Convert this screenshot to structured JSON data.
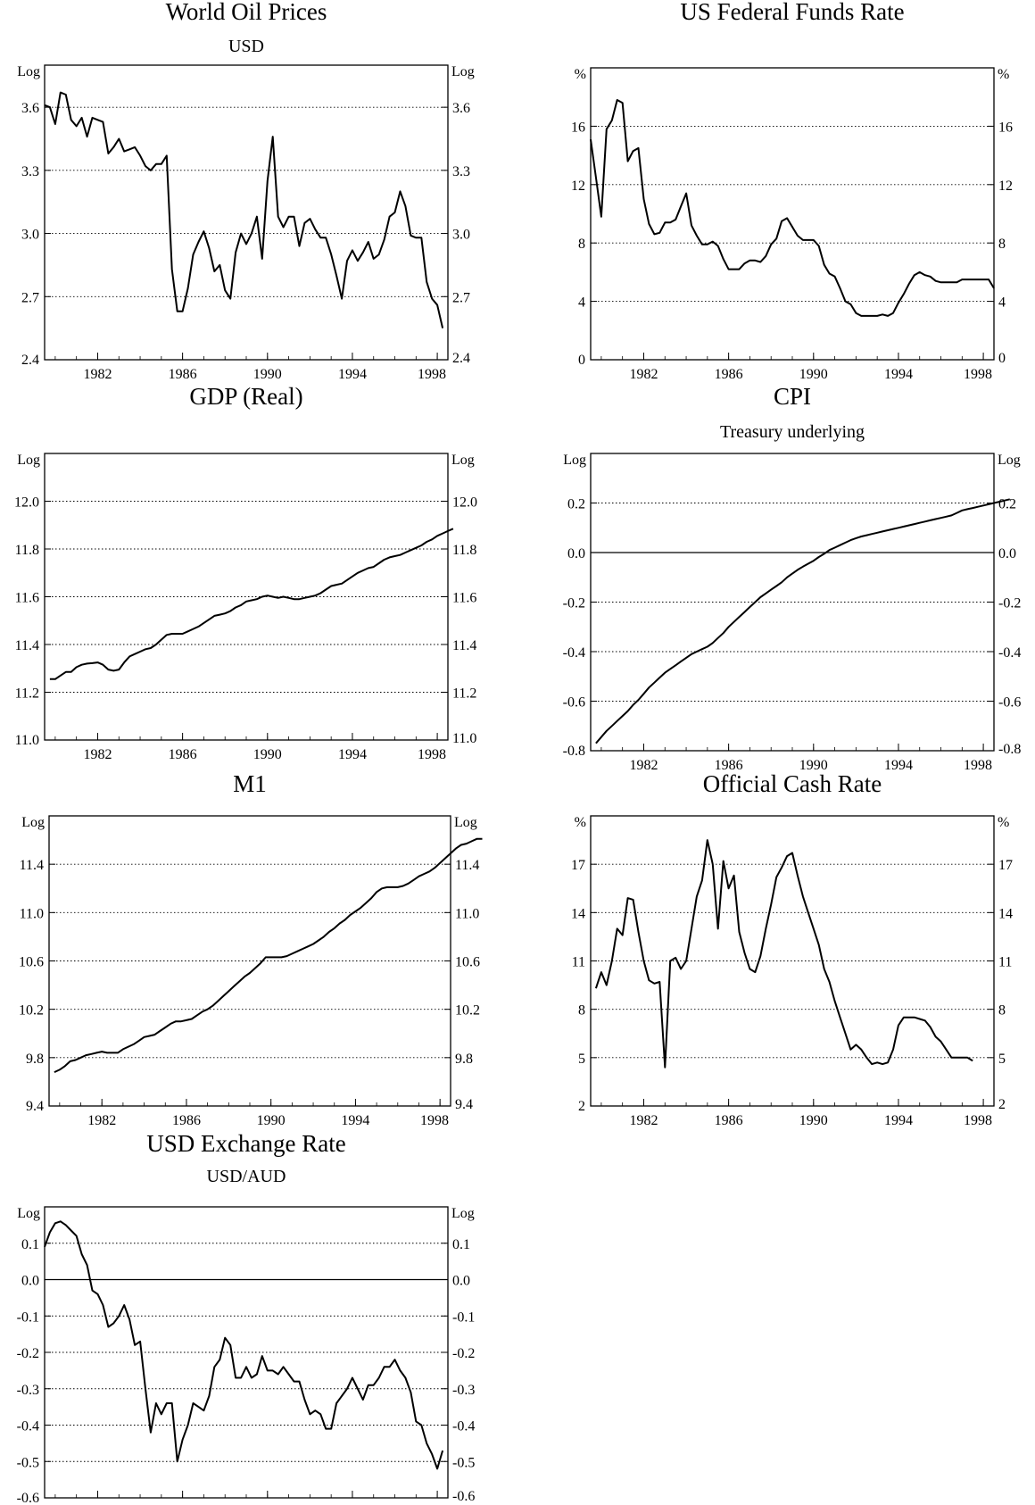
{
  "chart_data": [
    {
      "type": "line",
      "title": "World Oil Prices",
      "subtitle": "USD",
      "unit_left": "Log",
      "unit_right": "Log",
      "ylim": [
        2.4,
        3.8
      ],
      "yticks": [
        "2.4",
        "2.7",
        "3.0",
        "3.3",
        "3.6"
      ],
      "xlim": [
        1979.5,
        1998.5
      ],
      "xticks": [
        "1982",
        "1986",
        "1990",
        "1994",
        "1998"
      ],
      "zero_line": false,
      "grid": "horizontal-dotted",
      "series": [
        {
          "x_start": 1979.5,
          "x_step": 0.25,
          "values": [
            3.61,
            3.6,
            3.52,
            3.67,
            3.66,
            3.54,
            3.51,
            3.55,
            3.46,
            3.55,
            3.54,
            3.53,
            3.38,
            3.41,
            3.45,
            3.39,
            3.4,
            3.41,
            3.37,
            3.32,
            3.3,
            3.33,
            3.33,
            3.37,
            2.83,
            2.63,
            2.63,
            2.74,
            2.9,
            2.96,
            3.01,
            2.93,
            2.82,
            2.85,
            2.73,
            2.69,
            2.91,
            3.0,
            2.95,
            3.0,
            3.08,
            2.88,
            3.25,
            3.46,
            3.08,
            3.03,
            3.08,
            3.08,
            2.94,
            3.05,
            3.07,
            3.02,
            2.98,
            2.98,
            2.9,
            2.8,
            2.69,
            2.87,
            2.92,
            2.87,
            2.91,
            2.96,
            2.88,
            2.9,
            2.97,
            3.08,
            3.1,
            3.2,
            3.13,
            2.99,
            2.98,
            2.98,
            2.77,
            2.69,
            2.66,
            2.55
          ]
        }
      ]
    },
    {
      "type": "line",
      "title": "US Federal Funds Rate",
      "subtitle": "",
      "unit_left": "%",
      "unit_right": "%",
      "ylim": [
        0,
        20
      ],
      "yticks": [
        "0",
        "4",
        "8",
        "12",
        "16"
      ],
      "xlim": [
        1979.5,
        1998.5
      ],
      "xticks": [
        "1982",
        "1986",
        "1990",
        "1994",
        "1998"
      ],
      "zero_line": false,
      "grid": "horizontal-dotted",
      "series": [
        {
          "x_start": 1979.5,
          "x_step": 0.25,
          "values": [
            15.1,
            12.5,
            9.8,
            15.8,
            16.4,
            17.8,
            17.6,
            13.6,
            14.3,
            14.5,
            11.0,
            9.3,
            8.6,
            8.7,
            9.4,
            9.4,
            9.6,
            10.5,
            11.4,
            9.2,
            8.5,
            7.9,
            7.9,
            8.1,
            7.8,
            6.9,
            6.2,
            6.2,
            6.2,
            6.6,
            6.8,
            6.8,
            6.7,
            7.1,
            7.9,
            8.3,
            9.5,
            9.7,
            9.1,
            8.5,
            8.2,
            8.2,
            8.2,
            7.8,
            6.5,
            5.9,
            5.7,
            4.9,
            4.0,
            3.8,
            3.2,
            3.0,
            3.0,
            3.0,
            3.0,
            3.1,
            3.0,
            3.2,
            3.9,
            4.5,
            5.2,
            5.8,
            6.0,
            5.8,
            5.7,
            5.4,
            5.3,
            5.3,
            5.3,
            5.3,
            5.5,
            5.5,
            5.5,
            5.5,
            5.5,
            5.5,
            4.9
          ]
        }
      ]
    },
    {
      "type": "line",
      "title": "GDP (Real)",
      "subtitle": "",
      "unit_left": "Log",
      "unit_right": "Log",
      "ylim": [
        11.0,
        12.2
      ],
      "yticks": [
        "11.0",
        "11.2",
        "11.4",
        "11.6",
        "11.8",
        "12.0"
      ],
      "xlim": [
        1979.5,
        1998.5
      ],
      "xticks": [
        "1982",
        "1986",
        "1990",
        "1994",
        "1998"
      ],
      "zero_line": false,
      "grid": "horizontal-dotted",
      "series": [
        {
          "x_start": 1979.75,
          "x_step": 0.25,
          "values": [
            11.255,
            11.255,
            11.27,
            11.285,
            11.285,
            11.305,
            11.315,
            11.32,
            11.322,
            11.325,
            11.315,
            11.295,
            11.29,
            11.295,
            11.325,
            11.35,
            11.36,
            11.37,
            11.38,
            11.385,
            11.4,
            11.42,
            11.44,
            11.445,
            11.445,
            11.445,
            11.455,
            11.465,
            11.475,
            11.49,
            11.505,
            11.52,
            11.525,
            11.53,
            11.54,
            11.555,
            11.565,
            11.58,
            11.585,
            11.59,
            11.6,
            11.605,
            11.6,
            11.595,
            11.6,
            11.595,
            11.59,
            11.59,
            11.595,
            11.6,
            11.605,
            11.615,
            11.63,
            11.645,
            11.65,
            11.655,
            11.67,
            11.685,
            11.7,
            11.71,
            11.72,
            11.725,
            11.74,
            11.755,
            11.765,
            11.77,
            11.775,
            11.785,
            11.795,
            11.805,
            11.815,
            11.83,
            11.84,
            11.855,
            11.865,
            11.875,
            11.885
          ]
        }
      ]
    },
    {
      "type": "line",
      "title": "CPI",
      "subtitle": "Treasury underlying",
      "unit_left": "Log",
      "unit_right": "Log",
      "ylim": [
        -0.8,
        0.4
      ],
      "yticks": [
        "-0.8",
        "-0.6",
        "-0.4",
        "-0.2",
        "0.0",
        "0.2"
      ],
      "xlim": [
        1979.5,
        1998.5
      ],
      "xticks": [
        "1982",
        "1986",
        "1990",
        "1994",
        "1998"
      ],
      "zero_line": true,
      "grid": "horizontal-dotted",
      "series": [
        {
          "x_start": 1979.75,
          "x_step": 0.25,
          "values": [
            -0.77,
            -0.745,
            -0.72,
            -0.7,
            -0.68,
            -0.66,
            -0.64,
            -0.615,
            -0.595,
            -0.57,
            -0.545,
            -0.525,
            -0.505,
            -0.485,
            -0.47,
            -0.455,
            -0.44,
            -0.425,
            -0.41,
            -0.4,
            -0.39,
            -0.38,
            -0.365,
            -0.345,
            -0.325,
            -0.3,
            -0.28,
            -0.26,
            -0.24,
            -0.22,
            -0.2,
            -0.18,
            -0.165,
            -0.15,
            -0.135,
            -0.12,
            -0.1,
            -0.085,
            -0.07,
            -0.057,
            -0.045,
            -0.033,
            -0.018,
            -0.005,
            0.01,
            0.02,
            0.03,
            0.04,
            0.05,
            0.058,
            0.065,
            0.07,
            0.075,
            0.08,
            0.085,
            0.09,
            0.095,
            0.1,
            0.105,
            0.11,
            0.115,
            0.12,
            0.125,
            0.13,
            0.135,
            0.14,
            0.145,
            0.15,
            0.16,
            0.17,
            0.175,
            0.18,
            0.185,
            0.19,
            0.195,
            0.2,
            0.205,
            0.21,
            0.215
          ]
        }
      ]
    },
    {
      "type": "line",
      "title": "M1",
      "subtitle": "",
      "unit_left": "Log",
      "unit_right": "Log",
      "ylim": [
        9.4,
        11.8
      ],
      "yticks": [
        "9.4",
        "9.8",
        "10.2",
        "10.6",
        "11.0",
        "11.4"
      ],
      "xlim": [
        1979.5,
        1998.5
      ],
      "xticks": [
        "1982",
        "1986",
        "1990",
        "1994",
        "1998"
      ],
      "zero_line": false,
      "grid": "horizontal-dotted",
      "series": [
        {
          "x_start": 1979.75,
          "x_step": 0.25,
          "values": [
            9.68,
            9.7,
            9.73,
            9.77,
            9.78,
            9.8,
            9.82,
            9.83,
            9.84,
            9.85,
            9.84,
            9.84,
            9.84,
            9.87,
            9.89,
            9.91,
            9.94,
            9.97,
            9.98,
            9.99,
            10.02,
            10.05,
            10.08,
            10.1,
            10.1,
            10.11,
            10.12,
            10.15,
            10.18,
            10.2,
            10.23,
            10.27,
            10.31,
            10.35,
            10.39,
            10.43,
            10.47,
            10.5,
            10.54,
            10.58,
            10.63,
            10.63,
            10.63,
            10.63,
            10.64,
            10.66,
            10.68,
            10.7,
            10.72,
            10.74,
            10.77,
            10.8,
            10.84,
            10.87,
            10.91,
            10.94,
            10.98,
            11.01,
            11.04,
            11.08,
            11.12,
            11.17,
            11.2,
            11.21,
            11.21,
            11.21,
            11.22,
            11.24,
            11.27,
            11.3,
            11.32,
            11.34,
            11.37,
            11.41,
            11.45,
            11.49,
            11.53,
            11.56,
            11.57,
            11.59,
            11.61,
            11.61
          ]
        }
      ]
    },
    {
      "type": "line",
      "title": "Official Cash Rate",
      "subtitle": "",
      "unit_left": "%",
      "unit_right": "%",
      "ylim": [
        2,
        20
      ],
      "yticks": [
        "2",
        "5",
        "8",
        "11",
        "14",
        "17"
      ],
      "xlim": [
        1979.5,
        1998.5
      ],
      "xticks": [
        "1982",
        "1986",
        "1990",
        "1994",
        "1998"
      ],
      "zero_line": false,
      "grid": "horizontal-dotted",
      "series": [
        {
          "x_start": 1979.75,
          "x_step": 0.25,
          "values": [
            9.3,
            10.3,
            9.5,
            11.0,
            13.0,
            12.6,
            14.9,
            14.8,
            12.8,
            11.0,
            9.8,
            9.6,
            9.7,
            4.4,
            11.0,
            11.2,
            10.5,
            11.0,
            13.0,
            15.0,
            16.0,
            18.5,
            17.0,
            13.0,
            17.2,
            15.5,
            16.3,
            12.8,
            11.5,
            10.5,
            10.3,
            11.3,
            13.0,
            14.5,
            16.2,
            16.8,
            17.5,
            17.7,
            16.3,
            15.0,
            14.0,
            13.0,
            12.0,
            10.5,
            9.7,
            8.5,
            7.5,
            6.5,
            5.5,
            5.8,
            5.5,
            5.0,
            4.6,
            4.7,
            4.6,
            4.7,
            5.5,
            7.0,
            7.5,
            7.5,
            7.5,
            7.4,
            7.3,
            6.9,
            6.3,
            6.0,
            5.5,
            5.0,
            5.0,
            5.0,
            5.0,
            4.8
          ]
        }
      ]
    },
    {
      "type": "line",
      "title": "USD Exchange Rate",
      "subtitle": "USD/AUD",
      "unit_left": "Log",
      "unit_right": "Log",
      "ylim": [
        -0.6,
        0.2
      ],
      "yticks": [
        "-0.6",
        "-0.5",
        "-0.4",
        "-0.3",
        "-0.2",
        "-0.1",
        "0.0",
        "0.1"
      ],
      "xlim": [
        1979.5,
        1998.5
      ],
      "xticks": [
        "1982",
        "1986",
        "1990",
        "1994",
        "1998"
      ],
      "zero_line": true,
      "grid": "horizontal-dotted",
      "series": [
        {
          "x_start": 1979.5,
          "x_step": 0.25,
          "values": [
            0.09,
            0.13,
            0.155,
            0.16,
            0.15,
            0.135,
            0.12,
            0.07,
            0.04,
            -0.03,
            -0.04,
            -0.07,
            -0.13,
            -0.12,
            -0.1,
            -0.07,
            -0.11,
            -0.18,
            -0.17,
            -0.3,
            -0.42,
            -0.34,
            -0.37,
            -0.34,
            -0.34,
            -0.5,
            -0.44,
            -0.4,
            -0.34,
            -0.35,
            -0.36,
            -0.32,
            -0.24,
            -0.22,
            -0.16,
            -0.18,
            -0.27,
            -0.27,
            -0.24,
            -0.27,
            -0.26,
            -0.21,
            -0.25,
            -0.25,
            -0.26,
            -0.24,
            -0.26,
            -0.28,
            -0.28,
            -0.33,
            -0.37,
            -0.36,
            -0.37,
            -0.41,
            -0.41,
            -0.34,
            -0.32,
            -0.3,
            -0.27,
            -0.3,
            -0.33,
            -0.29,
            -0.29,
            -0.27,
            -0.24,
            -0.24,
            -0.22,
            -0.25,
            -0.27,
            -0.31,
            -0.39,
            -0.4,
            -0.45,
            -0.48,
            -0.52,
            -0.47
          ]
        }
      ]
    }
  ]
}
